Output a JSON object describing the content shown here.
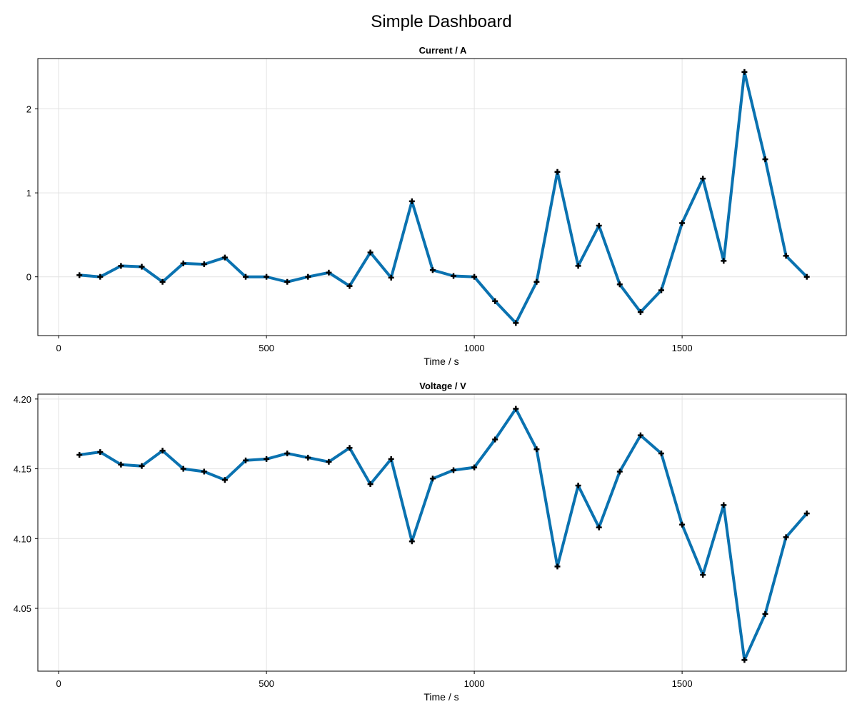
{
  "title": "Simple Dashboard",
  "colors": {
    "series": "#0a72b0",
    "marker": "#000000"
  },
  "chart_data": [
    {
      "type": "line",
      "title": "Current  /  A",
      "xlabel": "Time  /  s",
      "ylabel": "",
      "xlim": [
        -50,
        1895
      ],
      "ylim": [
        -0.7,
        2.6
      ],
      "xticks": [
        0,
        500,
        1000,
        1500
      ],
      "xtick_labels": [
        "0",
        "500",
        "1000",
        "1500"
      ],
      "yticks": [
        0,
        1,
        2
      ],
      "ytick_labels": [
        "0",
        "1",
        "2"
      ],
      "grid": true,
      "marker": "plus",
      "x": [
        50,
        100,
        150,
        200,
        250,
        300,
        350,
        400,
        450,
        500,
        550,
        600,
        650,
        700,
        750,
        800,
        850,
        900,
        950,
        1000,
        1050,
        1100,
        1150,
        1200,
        1250,
        1300,
        1350,
        1400,
        1450,
        1500,
        1550,
        1600,
        1650,
        1700,
        1750,
        1800
      ],
      "y": [
        0.02,
        0.0,
        0.13,
        0.12,
        -0.06,
        0.16,
        0.15,
        0.23,
        0.0,
        0.0,
        -0.06,
        0.0,
        0.05,
        -0.11,
        0.29,
        -0.01,
        0.9,
        0.08,
        0.01,
        0.0,
        -0.29,
        -0.55,
        -0.06,
        1.25,
        0.13,
        0.61,
        -0.09,
        -0.42,
        -0.16,
        0.64,
        1.17,
        0.19,
        2.44,
        1.4,
        0.25,
        0.0
      ]
    },
    {
      "type": "line",
      "title": "Voltage  /  V",
      "xlabel": "Time  /  s",
      "ylabel": "",
      "xlim": [
        -50,
        1895
      ],
      "ylim": [
        4.005,
        4.2035
      ],
      "xticks": [
        0,
        500,
        1000,
        1500
      ],
      "xtick_labels": [
        "0",
        "500",
        "1000",
        "1500"
      ],
      "yticks": [
        4.05,
        4.1,
        4.15,
        4.2
      ],
      "ytick_labels": [
        "4.05",
        "4.10",
        "4.15",
        "4.20"
      ],
      "grid": true,
      "marker": "plus",
      "x": [
        50,
        100,
        150,
        200,
        250,
        300,
        350,
        400,
        450,
        500,
        550,
        600,
        650,
        700,
        750,
        800,
        850,
        900,
        950,
        1000,
        1050,
        1100,
        1150,
        1200,
        1250,
        1300,
        1350,
        1400,
        1450,
        1500,
        1550,
        1600,
        1650,
        1700,
        1750,
        1800
      ],
      "y": [
        4.16,
        4.162,
        4.153,
        4.152,
        4.163,
        4.15,
        4.148,
        4.142,
        4.156,
        4.157,
        4.161,
        4.158,
        4.155,
        4.165,
        4.139,
        4.157,
        4.098,
        4.143,
        4.149,
        4.151,
        4.171,
        4.193,
        4.164,
        4.08,
        4.138,
        4.108,
        4.148,
        4.174,
        4.161,
        4.11,
        4.074,
        4.124,
        4.013,
        4.046,
        4.101,
        4.118
      ]
    }
  ]
}
